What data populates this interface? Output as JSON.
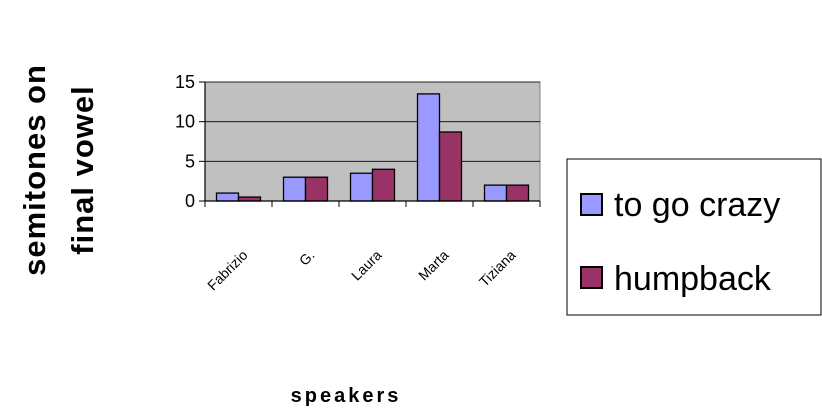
{
  "chart_data": {
    "type": "bar",
    "ylabel": [
      "semitones on",
      "final vowel"
    ],
    "xlabel": "speakers",
    "categories": [
      "Fabrizio",
      "G.",
      "Laura",
      "Marta",
      "Tiziana"
    ],
    "series": [
      {
        "name": "to go crazy",
        "values": [
          1,
          3,
          3.5,
          13.5,
          2
        ],
        "color": "#9999ff"
      },
      {
        "name": "humpback",
        "values": [
          0.5,
          3,
          4,
          8.7,
          2
        ],
        "color": "#993366"
      }
    ],
    "yticks": [
      0,
      5,
      10,
      15
    ],
    "ylim": [
      0,
      15
    ],
    "grid": true,
    "legend_position": "right",
    "plot_background": "#c0c0c0"
  }
}
